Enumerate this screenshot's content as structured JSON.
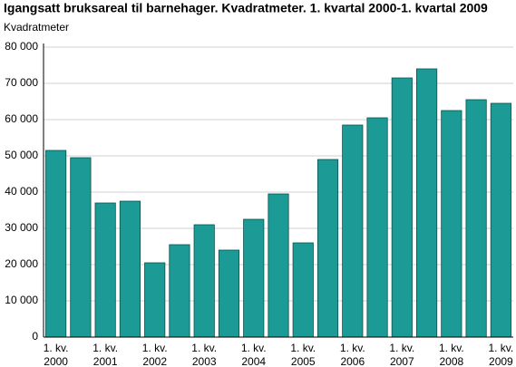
{
  "chart_data": {
    "type": "bar",
    "title": "Igangsatt bruksareal til barnehager. Kvadratmeter. 1. kvartal 2000-1. kvartal 2009",
    "y_label": "Kvadratmeter",
    "categories": [
      [
        "1. kv.",
        "2000"
      ],
      null,
      [
        "1. kv.",
        "2001"
      ],
      null,
      [
        "1. kv.",
        "2002"
      ],
      null,
      [
        "1. kv.",
        "2003"
      ],
      null,
      [
        "1. kv.",
        "2004"
      ],
      null,
      [
        "1. kv.",
        "2005"
      ],
      null,
      [
        "1. kv.",
        "2006"
      ],
      null,
      [
        "1. kv.",
        "2007"
      ],
      null,
      [
        "1. kv.",
        "2008"
      ],
      null,
      [
        "1. kv.",
        "2009"
      ]
    ],
    "values": [
      51500,
      49500,
      37000,
      37500,
      20500,
      25500,
      31000,
      24000,
      32500,
      39500,
      26000,
      49000,
      58500,
      60500,
      71500,
      74000,
      62500,
      65500,
      64500
    ],
    "color": "#1c9a96",
    "ylim": [
      0,
      80000
    ],
    "yticks": [
      0,
      {
        "value": 10000,
        "label": "10 000"
      },
      {
        "value": 20000,
        "label": "20 000"
      },
      {
        "value": 30000,
        "label": "30 000"
      },
      {
        "value": 40000,
        "label": "40 000"
      },
      {
        "value": 50000,
        "label": "50 000"
      },
      {
        "value": 60000,
        "label": "60 000"
      },
      {
        "value": 70000,
        "label": "70 000"
      },
      {
        "value": 80000,
        "label": "80 000"
      }
    ],
    "grid": true
  }
}
